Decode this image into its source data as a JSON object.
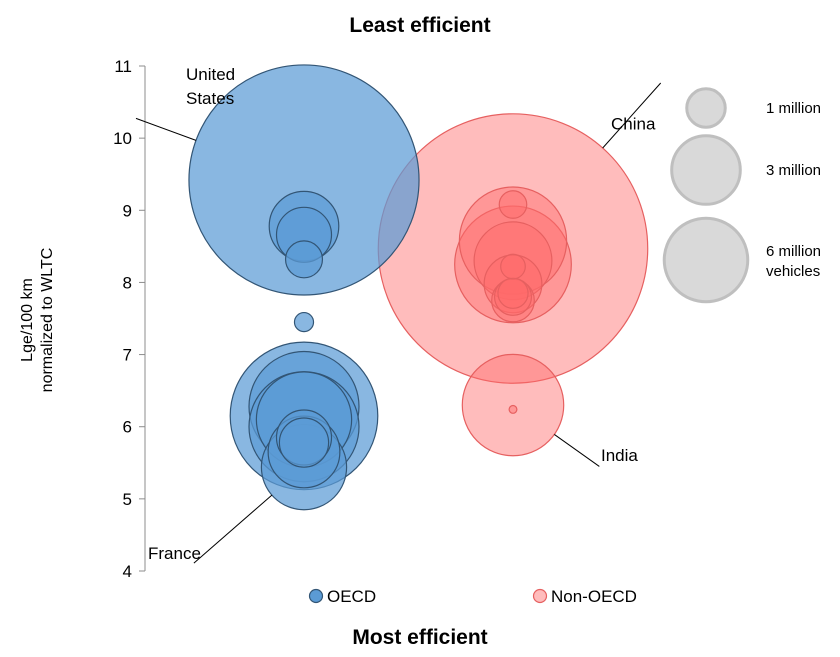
{
  "chart_data": {
    "type": "bubble",
    "title_top": "Least efficient",
    "title_bottom": "Most efficient",
    "ylabel_line1": "Lge/100 km",
    "ylabel_line2": "normalized to WLTC",
    "ylim": [
      4,
      11
    ],
    "yticks": [
      "4",
      "5",
      "6",
      "7",
      "8",
      "9",
      "10",
      "11"
    ],
    "series": [
      {
        "name": "OECD",
        "color": "#5B9BD5",
        "points": [
          {
            "y": 9.42,
            "vehicles_millions": 17.5
          },
          {
            "y": 8.78,
            "vehicles_millions": 1.6
          },
          {
            "y": 8.66,
            "vehicles_millions": 1.0
          },
          {
            "y": 8.32,
            "vehicles_millions": 0.45
          },
          {
            "y": 7.45,
            "vehicles_millions": 0.12
          },
          {
            "y": 6.15,
            "vehicles_millions": 7.2
          },
          {
            "y": 6.28,
            "vehicles_millions": 4.0
          },
          {
            "y": 6.1,
            "vehicles_millions": 3.0
          },
          {
            "y": 6.0,
            "vehicles_millions": 4.0
          },
          {
            "y": 5.85,
            "vehicles_millions": 1.0
          },
          {
            "y": 5.78,
            "vehicles_millions": 0.8
          },
          {
            "y": 5.65,
            "vehicles_millions": 1.7
          },
          {
            "y": 5.44,
            "vehicles_millions": 2.4
          }
        ]
      },
      {
        "name": "Non-OECD",
        "color": "#FF6B6B",
        "points": [
          {
            "y": 8.47,
            "vehicles_millions": 24.0
          },
          {
            "y": 9.08,
            "vehicles_millions": 0.25
          },
          {
            "y": 8.58,
            "vehicles_millions": 3.8
          },
          {
            "y": 8.25,
            "vehicles_millions": 4.5
          },
          {
            "y": 8.3,
            "vehicles_millions": 2.0
          },
          {
            "y": 8.22,
            "vehicles_millions": 0.2
          },
          {
            "y": 7.98,
            "vehicles_millions": 1.1
          },
          {
            "y": 7.85,
            "vehicles_millions": 0.3
          },
          {
            "y": 7.8,
            "vehicles_millions": 0.45
          },
          {
            "y": 7.75,
            "vehicles_millions": 0.6
          },
          {
            "y": 6.3,
            "vehicles_millions": 3.4
          },
          {
            "y": 6.24,
            "vehicles_millions": 0.02
          }
        ]
      }
    ],
    "annotations": [
      {
        "series": 0,
        "point": 0,
        "lines": [
          "United",
          "States"
        ],
        "side": "upper-left"
      },
      {
        "series": 0,
        "point": 12,
        "lines": [
          "France"
        ],
        "side": "lower-left"
      },
      {
        "series": 1,
        "point": 0,
        "lines": [
          "China"
        ],
        "side": "upper-right"
      },
      {
        "series": 1,
        "point": 10,
        "lines": [
          "India"
        ],
        "side": "lower-right"
      }
    ],
    "size_legend": {
      "color": "#D9D9D9",
      "entries": [
        {
          "vehicles_millions": 1,
          "lines": [
            "1 million"
          ]
        },
        {
          "vehicles_millions": 3,
          "lines": [
            "3 million"
          ]
        },
        {
          "vehicles_millions": 6,
          "lines": [
            "6 million",
            "vehicles"
          ]
        }
      ]
    },
    "legend_position": "bottom",
    "grid": false
  }
}
